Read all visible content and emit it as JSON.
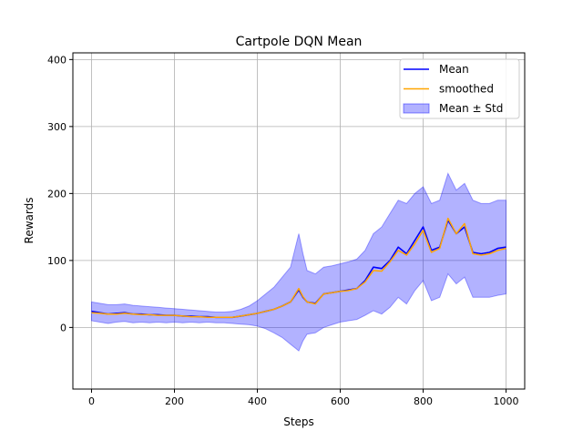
{
  "chart_data": {
    "type": "line",
    "title": "Cartpole DQN Mean",
    "xlabel": "Steps",
    "ylabel": "Rewards",
    "xlim": [
      -45,
      1045
    ],
    "ylim": [
      -92,
      410
    ],
    "grid": true,
    "xticks": [
      0,
      200,
      400,
      600,
      800,
      1000
    ],
    "yticks": [
      0,
      100,
      200,
      300,
      400
    ],
    "legend": {
      "placement": "top-right",
      "entries": [
        {
          "label": "Mean",
          "color": "#0000ff",
          "kind": "line"
        },
        {
          "label": "smoothed",
          "color": "#ffa500",
          "kind": "line"
        },
        {
          "label": "Mean ± Std",
          "color": "#0000ff",
          "kind": "band"
        }
      ]
    },
    "series": [
      {
        "name": "Mean",
        "color": "#0000ff",
        "x": [
          0,
          20,
          40,
          60,
          80,
          100,
          120,
          140,
          160,
          180,
          200,
          220,
          240,
          260,
          280,
          300,
          320,
          340,
          360,
          380,
          400,
          420,
          440,
          460,
          480,
          500,
          510,
          520,
          540,
          560,
          580,
          600,
          620,
          640,
          660,
          680,
          700,
          720,
          740,
          760,
          780,
          800,
          820,
          840,
          860,
          880,
          900,
          920,
          940,
          960,
          980,
          1000
        ],
        "y": [
          24,
          22,
          20,
          21,
          22,
          20,
          20,
          19,
          19,
          18,
          18,
          17,
          17,
          16,
          16,
          15,
          15,
          15,
          17,
          19,
          21,
          24,
          27,
          32,
          38,
          56,
          45,
          38,
          36,
          50,
          52,
          54,
          56,
          58,
          70,
          90,
          88,
          100,
          120,
          110,
          130,
          150,
          115,
          120,
          160,
          140,
          150,
          112,
          110,
          112,
          118,
          120
        ]
      },
      {
        "name": "smoothed",
        "color": "#ffa500",
        "x": [
          0,
          20,
          40,
          60,
          80,
          100,
          120,
          140,
          160,
          180,
          200,
          220,
          240,
          260,
          280,
          300,
          320,
          340,
          360,
          380,
          400,
          420,
          440,
          460,
          480,
          500,
          510,
          520,
          540,
          560,
          580,
          600,
          620,
          640,
          660,
          680,
          700,
          720,
          740,
          760,
          780,
          800,
          820,
          840,
          860,
          880,
          900,
          920,
          940,
          960,
          980,
          1000
        ],
        "y": [
          22,
          21,
          20,
          20,
          21,
          20,
          19,
          19,
          18,
          18,
          18,
          17,
          16,
          16,
          15,
          15,
          15,
          15,
          17,
          19,
          21,
          24,
          27,
          32,
          38,
          58,
          46,
          38,
          35,
          50,
          52,
          54,
          55,
          58,
          68,
          85,
          84,
          98,
          115,
          108,
          125,
          145,
          112,
          118,
          163,
          140,
          155,
          110,
          108,
          110,
          115,
          118
        ]
      }
    ],
    "band": {
      "name": "Mean ± Std",
      "color": "#0000ff",
      "x": [
        0,
        20,
        40,
        60,
        80,
        100,
        120,
        140,
        160,
        180,
        200,
        220,
        240,
        260,
        280,
        300,
        320,
        340,
        360,
        380,
        400,
        420,
        440,
        460,
        480,
        500,
        510,
        520,
        540,
        560,
        580,
        600,
        620,
        640,
        660,
        680,
        700,
        720,
        740,
        760,
        780,
        800,
        820,
        840,
        860,
        880,
        900,
        920,
        940,
        960,
        980,
        1000
      ],
      "upper": [
        38,
        36,
        34,
        34,
        35,
        33,
        32,
        31,
        30,
        29,
        28,
        27,
        26,
        25,
        24,
        23,
        23,
        24,
        27,
        32,
        40,
        50,
        60,
        75,
        90,
        140,
        110,
        85,
        80,
        90,
        92,
        95,
        98,
        102,
        115,
        140,
        150,
        170,
        190,
        185,
        200,
        210,
        185,
        190,
        230,
        205,
        215,
        190,
        185,
        185,
        190,
        190
      ],
      "lower": [
        10,
        8,
        6,
        8,
        9,
        7,
        8,
        7,
        8,
        7,
        8,
        7,
        8,
        7,
        8,
        7,
        7,
        6,
        5,
        4,
        2,
        -2,
        -8,
        -15,
        -25,
        -35,
        -20,
        -10,
        -8,
        0,
        4,
        8,
        10,
        12,
        18,
        25,
        20,
        30,
        45,
        35,
        55,
        70,
        40,
        45,
        80,
        65,
        75,
        45,
        45,
        45,
        48,
        50
      ]
    }
  }
}
